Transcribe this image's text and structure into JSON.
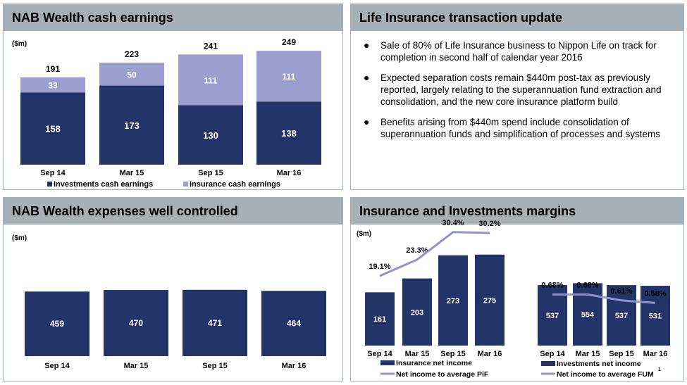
{
  "colors": {
    "dark": "#233468",
    "light": "#9b9fcf",
    "line": "#8f93cc",
    "header": "#a7b0b4"
  },
  "panels": {
    "cash_earnings": {
      "title": "NAB Wealth cash earnings",
      "unit": "($m)"
    },
    "transaction": {
      "title": "Life Insurance transaction update",
      "bullets": [
        "Sale of 80% of Life Insurance business to Nippon Life on track for completion in second half of calendar year 2016",
        "Expected separation costs remain $440m post-tax as previously reported, largely relating to the superannuation fund extraction and consolidation, and the new core insurance platform build",
        "Benefits arising from $440m spend include consolidation of superannuation funds and simplification of processes and systems"
      ]
    },
    "expenses": {
      "title": "NAB Wealth expenses well controlled",
      "unit": "($m)"
    },
    "margins": {
      "title": "Insurance and Investments margins",
      "unit": "($m)"
    }
  },
  "chart_data": [
    {
      "type": "bar",
      "stacked": true,
      "ylabel": "($m)",
      "categories": [
        "Sep 14",
        "Mar 15",
        "Sep 15",
        "Mar 16"
      ],
      "series": [
        {
          "name": "Investments cash earnings",
          "values": [
            158,
            173,
            130,
            138
          ]
        },
        {
          "name": "Insurance cash earnings",
          "values": [
            33,
            50,
            111,
            111
          ]
        }
      ],
      "totals": [
        "191",
        "223",
        "241",
        "249"
      ],
      "value_labels": {
        "investments": [
          "158",
          "173",
          "130",
          "138"
        ],
        "insurance": [
          "33",
          "50",
          "111",
          "111"
        ]
      },
      "legend": "bottom"
    },
    {
      "type": "bar",
      "ylabel": "($m)",
      "categories": [
        "Sep 14",
        "Mar 15",
        "Sep 15",
        "Mar 16"
      ],
      "values": [
        459,
        470,
        471,
        464
      ],
      "value_labels": [
        "459",
        "470",
        "471",
        "464"
      ]
    },
    {
      "type": "bar",
      "ylabel": "($m)",
      "categories": [
        "Sep 14",
        "Mar 15",
        "Sep 15",
        "Mar 16"
      ],
      "series": [
        {
          "name": "Insurance net income",
          "values": [
            161,
            203,
            273,
            275
          ]
        },
        {
          "name": "Net income to average PiF",
          "values": [
            19.1,
            23.3,
            30.4,
            30.2
          ]
        }
      ],
      "value_labels": [
        "161",
        "203",
        "273",
        "275"
      ],
      "line_labels": [
        "19.1%",
        "23.3%",
        "30.4%",
        "30.2%"
      ],
      "legend": "bottom"
    },
    {
      "type": "bar",
      "categories": [
        "Sep 14",
        "Mar 15",
        "Sep 15",
        "Mar 16"
      ],
      "series": [
        {
          "name": "Investments net income",
          "values": [
            537,
            554,
            537,
            531
          ]
        },
        {
          "name": "Net income to average FUM",
          "values": [
            0.68,
            0.68,
            0.61,
            0.58
          ]
        }
      ],
      "value_labels": [
        "537",
        "554",
        "537",
        "531"
      ],
      "line_labels": [
        "0.68%",
        "0.68%",
        "0.61%",
        "0.58%"
      ],
      "footnote": "1",
      "legend": "bottom"
    }
  ]
}
